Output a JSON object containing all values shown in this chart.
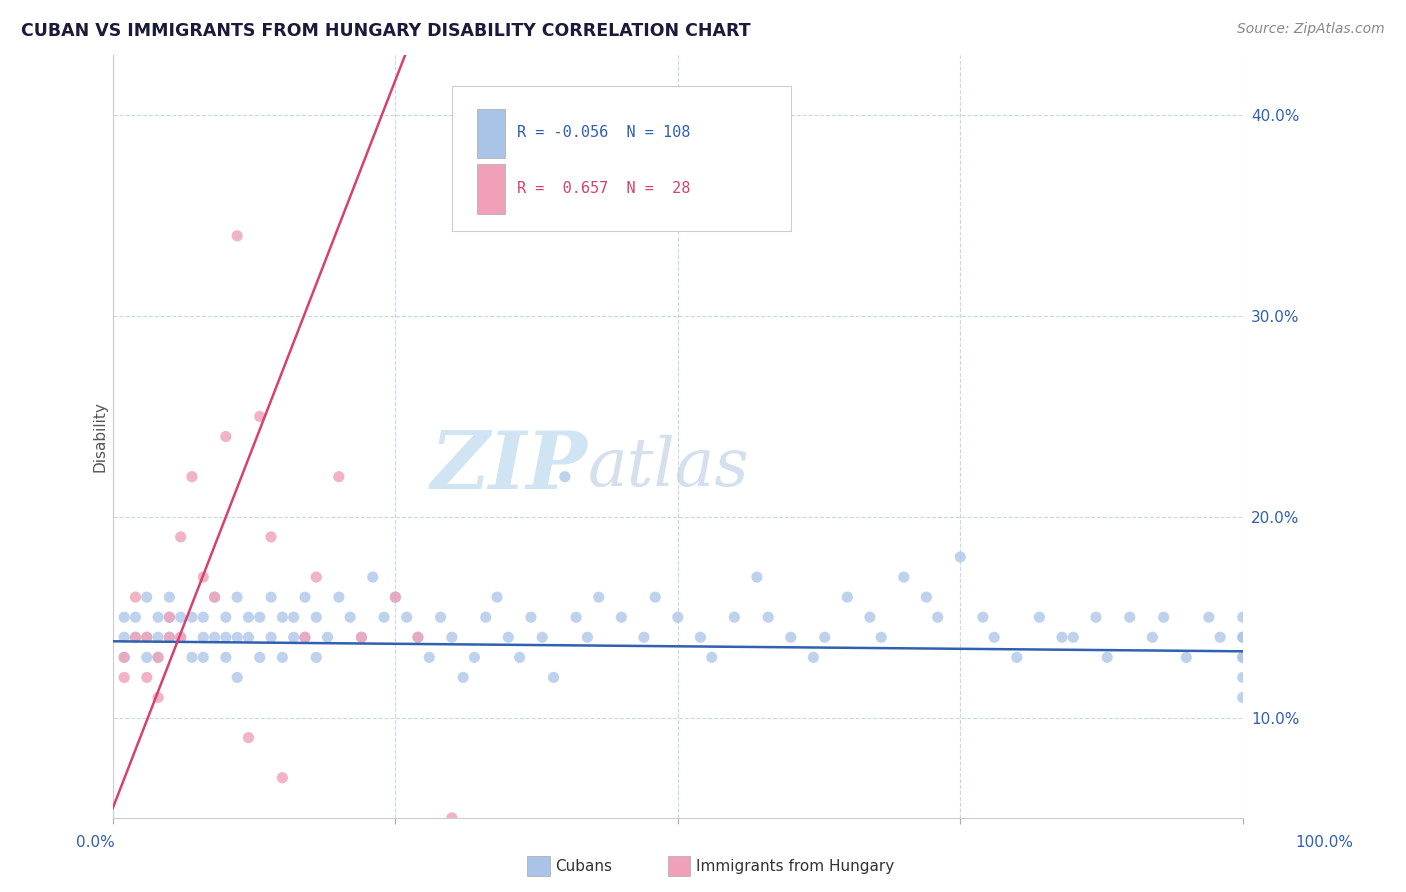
{
  "title": "CUBAN VS IMMIGRANTS FROM HUNGARY DISABILITY CORRELATION CHART",
  "source": "Source: ZipAtlas.com",
  "ylabel": "Disability",
  "xlim": [
    0,
    100
  ],
  "ylim": [
    5,
    43
  ],
  "ytick_vals": [
    10,
    20,
    30,
    40
  ],
  "ytick_labels": [
    "10.0%",
    "20.0%",
    "30.0%",
    "40.0%"
  ],
  "legend_labels": [
    "Cubans",
    "Immigrants from Hungary"
  ],
  "cubans_R": "-0.056",
  "cubans_N": "108",
  "hungary_R": "0.657",
  "hungary_N": "28",
  "blue_scatter_color": "#aac4e8",
  "pink_scatter_color": "#f0a0b8",
  "blue_line_color": "#3060b0",
  "pink_line_color": "#d84070",
  "watermark_color": "#d0e4f4",
  "background_color": "#ffffff",
  "grid_color": "#c8d8e8",
  "title_color": "#1a1a3a",
  "source_color": "#888888",
  "axis_label_color": "#555555",
  "tick_color": "#3060b0",
  "cubans_slope": -0.005,
  "cubans_intercept": 13.8,
  "hungary_slope": 1.45,
  "hungary_intercept": 5.5,
  "cubans_x": [
    1,
    1,
    1,
    2,
    2,
    3,
    3,
    3,
    4,
    4,
    4,
    5,
    5,
    5,
    6,
    6,
    7,
    7,
    8,
    8,
    8,
    9,
    9,
    10,
    10,
    10,
    11,
    11,
    11,
    12,
    12,
    13,
    13,
    14,
    14,
    15,
    15,
    16,
    16,
    17,
    17,
    18,
    18,
    19,
    20,
    21,
    22,
    23,
    24,
    25,
    26,
    27,
    28,
    29,
    30,
    31,
    32,
    33,
    34,
    35,
    36,
    37,
    38,
    39,
    40,
    41,
    42,
    43,
    45,
    47,
    48,
    50,
    52,
    53,
    55,
    57,
    58,
    60,
    62,
    63,
    65,
    67,
    68,
    70,
    72,
    73,
    75,
    77,
    78,
    80,
    82,
    84,
    85,
    87,
    88,
    90,
    92,
    93,
    95,
    97,
    98,
    100,
    100,
    100,
    100,
    100,
    100,
    100
  ],
  "cubans_y": [
    14,
    13,
    15,
    15,
    14,
    13,
    16,
    14,
    15,
    13,
    14,
    16,
    14,
    15,
    14,
    15,
    13,
    15,
    14,
    13,
    15,
    14,
    16,
    15,
    14,
    13,
    16,
    14,
    12,
    15,
    14,
    13,
    15,
    14,
    16,
    15,
    13,
    14,
    15,
    16,
    14,
    15,
    13,
    14,
    16,
    15,
    14,
    17,
    15,
    16,
    15,
    14,
    13,
    15,
    14,
    12,
    13,
    15,
    16,
    14,
    13,
    15,
    14,
    12,
    22,
    15,
    14,
    16,
    15,
    14,
    16,
    15,
    14,
    13,
    15,
    17,
    15,
    14,
    13,
    14,
    16,
    15,
    14,
    17,
    16,
    15,
    18,
    15,
    14,
    13,
    15,
    14,
    14,
    15,
    13,
    15,
    14,
    15,
    13,
    15,
    14,
    13,
    15,
    14,
    13,
    12,
    14,
    11
  ],
  "hungary_x": [
    1,
    1,
    2,
    2,
    3,
    3,
    4,
    4,
    5,
    5,
    6,
    6,
    7,
    8,
    9,
    10,
    11,
    12,
    13,
    14,
    15,
    17,
    18,
    20,
    22,
    25,
    27,
    30
  ],
  "hungary_y": [
    13,
    12,
    16,
    14,
    14,
    12,
    13,
    11,
    15,
    14,
    19,
    14,
    22,
    17,
    16,
    24,
    34,
    9,
    25,
    19,
    7,
    14,
    17,
    22,
    14,
    16,
    14,
    5
  ]
}
